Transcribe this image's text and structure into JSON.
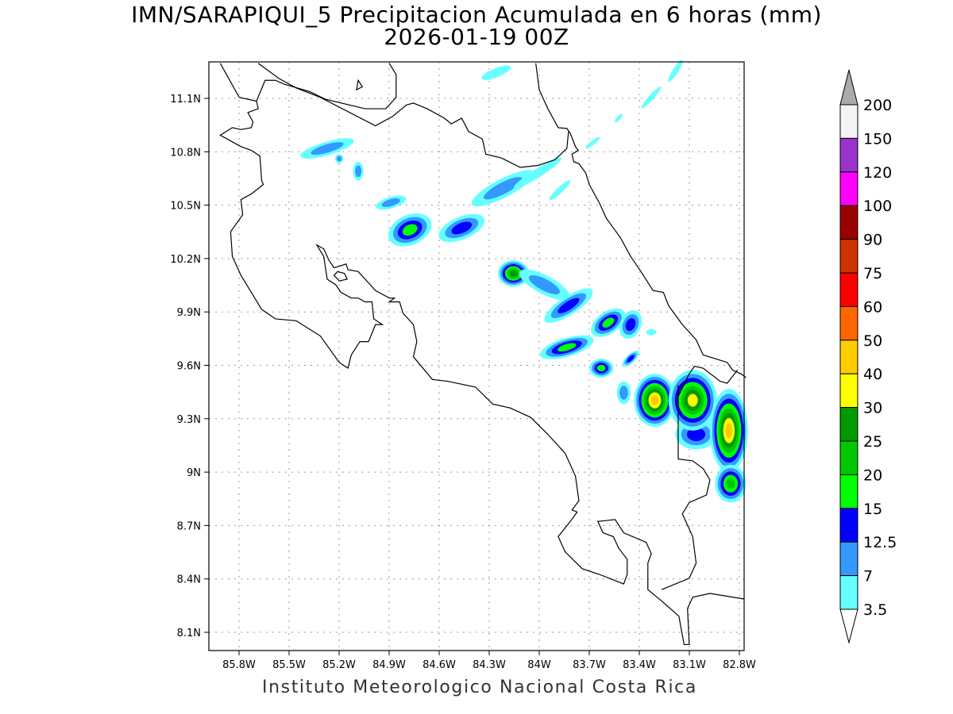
{
  "title": {
    "line1": "IMN/SARAPIQUI_5 Precipitacion Acumulada en 6 horas (mm)",
    "line2": "2026-01-19 00Z"
  },
  "footer": "Instituto Meteorologico Nacional Costa Rica",
  "map": {
    "region": "Costa Rica",
    "lon_ticks": [
      {
        "value": -85.8,
        "label": "85.8W"
      },
      {
        "value": -85.5,
        "label": "85.5W"
      },
      {
        "value": -85.2,
        "label": "85.2W"
      },
      {
        "value": -84.9,
        "label": "84.9W"
      },
      {
        "value": -84.6,
        "label": "84.6W"
      },
      {
        "value": -84.3,
        "label": "84.3W"
      },
      {
        "value": -84.0,
        "label": "84W"
      },
      {
        "value": -83.7,
        "label": "83.7W"
      },
      {
        "value": -83.4,
        "label": "83.4W"
      },
      {
        "value": -83.1,
        "label": "83.1W"
      },
      {
        "value": -82.8,
        "label": "82.8W"
      }
    ],
    "lat_ticks": [
      {
        "value": 11.1,
        "label": "11.1N"
      },
      {
        "value": 10.8,
        "label": "10.8N"
      },
      {
        "value": 10.5,
        "label": "10.5N"
      },
      {
        "value": 10.2,
        "label": "10.2N"
      },
      {
        "value": 9.9,
        "label": "9.9N"
      },
      {
        "value": 9.6,
        "label": "9.6N"
      },
      {
        "value": 9.3,
        "label": "9.3N"
      },
      {
        "value": 9.0,
        "label": "9N"
      },
      {
        "value": 8.7,
        "label": "8.7N"
      },
      {
        "value": 8.4,
        "label": "8.4N"
      },
      {
        "value": 8.1,
        "label": "8.1N"
      }
    ],
    "grid": true
  },
  "colorbar": {
    "labels": [
      "200",
      "150",
      "120",
      "100",
      "90",
      "75",
      "60",
      "50",
      "40",
      "30",
      "25",
      "20",
      "15",
      "12.5",
      "7",
      "3.5"
    ],
    "colors_top_to_bottom": [
      "#f4f4f4",
      "#9933cc",
      "#ff00ff",
      "#990000",
      "#cc3300",
      "#ff0000",
      "#ff6600",
      "#ffcc00",
      "#ffff00",
      "#009900",
      "#00c800",
      "#00ff00",
      "#0000ff",
      "#3399ff",
      "#66ffff"
    ],
    "over_color": "#aaaaaa",
    "under_color": "#ffffff"
  }
}
